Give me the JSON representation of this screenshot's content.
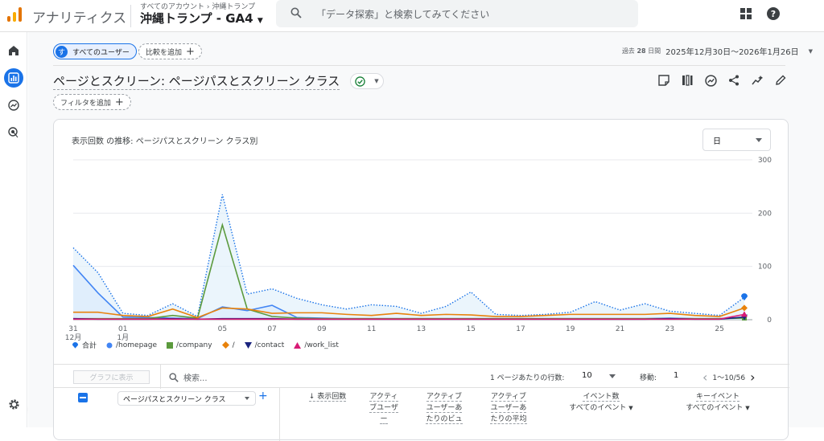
{
  "header": {
    "app_title": "アナリティクス",
    "breadcrumb_all": "すべてのアカウント",
    "breadcrumb_sep": "›",
    "breadcrumb_account": "沖縄トランプ",
    "property": "沖縄トランプ - GA4",
    "search_placeholder": "「データ探索」と検索してみてください"
  },
  "toolbar": {
    "segment_avatar": "す",
    "segment_label": "すべてのユーザー",
    "compare_label": "比較を追加",
    "date_prefix": "過去",
    "date_days": "28",
    "date_suffix": "日間",
    "date_range": "2025年12月30日〜2026年1月26日",
    "report_title": "ページとスクリーン: ページパスとスクリーン クラス",
    "filter_label": "フィルタを追加"
  },
  "card": {
    "title": "表示回数 の推移: ページパスとスクリーン クラス別",
    "granularity": "日"
  },
  "table": {
    "chart_button": "グラフに表示",
    "search_placeholder": "検索...",
    "rows_label": "1 ページあたりの行数:",
    "rows_value": "10",
    "move_label": "移動:",
    "move_value": "1",
    "page_range": "1〜10/56",
    "dimension": "ページパスとスクリーン クラス",
    "columns": [
      {
        "l1": "↓ 表示回数",
        "l2": "",
        "l3": ""
      },
      {
        "l1": "アクティ",
        "l2": "ブユーザ",
        "l3": "ー"
      },
      {
        "l1": "アクティブ",
        "l2": "ユーザーあ",
        "l3": "たりのビュ"
      },
      {
        "l1": "アクティブ",
        "l2": "ユーザーあ",
        "l3": "たりの平均"
      },
      {
        "l1": "イベント数",
        "l2": "すべてのイベント",
        "l3": ""
      },
      {
        "l1": "キーイベント",
        "l2": "すべてのイベント",
        "l3": ""
      }
    ]
  },
  "chart_data": {
    "type": "line",
    "x_ticks": [
      {
        "day": 0,
        "top": "31",
        "bottom": "12月"
      },
      {
        "day": 2,
        "top": "01",
        "bottom": "1月"
      },
      {
        "day": 6,
        "top": "05",
        "bottom": ""
      },
      {
        "day": 8,
        "top": "07",
        "bottom": ""
      },
      {
        "day": 10,
        "top": "09",
        "bottom": ""
      },
      {
        "day": 12,
        "top": "11",
        "bottom": ""
      },
      {
        "day": 14,
        "top": "13",
        "bottom": ""
      },
      {
        "day": 16,
        "top": "15",
        "bottom": ""
      },
      {
        "day": 18,
        "top": "17",
        "bottom": ""
      },
      {
        "day": 20,
        "top": "19",
        "bottom": ""
      },
      {
        "day": 22,
        "top": "21",
        "bottom": ""
      },
      {
        "day": 24,
        "top": "23",
        "bottom": ""
      },
      {
        "day": 26,
        "top": "25",
        "bottom": ""
      }
    ],
    "y_ticks": [
      "300",
      "200",
      "100",
      "0"
    ],
    "ylim": [
      0,
      300
    ],
    "series": [
      {
        "name": "合計",
        "color": "#1a73e8",
        "dotted": true,
        "area": true,
        "marker": "pin",
        "values": [
          135,
          88,
          12,
          8,
          30,
          6,
          235,
          48,
          58,
          40,
          28,
          20,
          28,
          25,
          12,
          25,
          52,
          10,
          8,
          10,
          14,
          34,
          18,
          30,
          16,
          12,
          8,
          42
        ]
      },
      {
        "name": "/homepage",
        "color": "#4285f4",
        "dotted": false,
        "area": true,
        "marker": "circle",
        "values": [
          102,
          50,
          5,
          4,
          3,
          2,
          24,
          17,
          27,
          4,
          3,
          2,
          2,
          2,
          2,
          2,
          2,
          2,
          2,
          2,
          2,
          2,
          2,
          2,
          3,
          2,
          2,
          4
        ]
      },
      {
        "name": "/company",
        "color": "#5b9a3d",
        "dotted": false,
        "area": false,
        "marker": "square",
        "values": [
          2,
          2,
          2,
          2,
          8,
          3,
          178,
          20,
          6,
          3,
          2,
          2,
          2,
          2,
          2,
          2,
          2,
          2,
          2,
          2,
          2,
          2,
          2,
          2,
          2,
          2,
          2,
          3
        ]
      },
      {
        "name": "/",
        "color": "#e8820c",
        "dotted": false,
        "area": false,
        "marker": "diamond",
        "values": [
          14,
          14,
          8,
          6,
          20,
          4,
          22,
          20,
          12,
          13,
          13,
          10,
          8,
          12,
          8,
          10,
          9,
          6,
          6,
          8,
          10,
          10,
          10,
          10,
          12,
          8,
          6,
          22
        ]
      },
      {
        "name": "/contact",
        "color": "#1a237e",
        "dotted": false,
        "area": false,
        "marker": "triangle",
        "values": [
          2,
          1,
          1,
          1,
          2,
          1,
          2,
          2,
          2,
          1,
          1,
          1,
          1,
          1,
          1,
          1,
          1,
          1,
          1,
          1,
          1,
          1,
          1,
          1,
          2,
          1,
          1,
          5
        ]
      },
      {
        "name": "/work_list",
        "color": "#d81b75",
        "dotted": false,
        "area": false,
        "marker": "tri-up",
        "values": [
          1,
          1,
          1,
          1,
          1,
          1,
          1,
          1,
          1,
          1,
          1,
          1,
          1,
          1,
          1,
          1,
          1,
          1,
          1,
          1,
          1,
          1,
          1,
          1,
          1,
          1,
          1,
          10
        ]
      }
    ]
  }
}
